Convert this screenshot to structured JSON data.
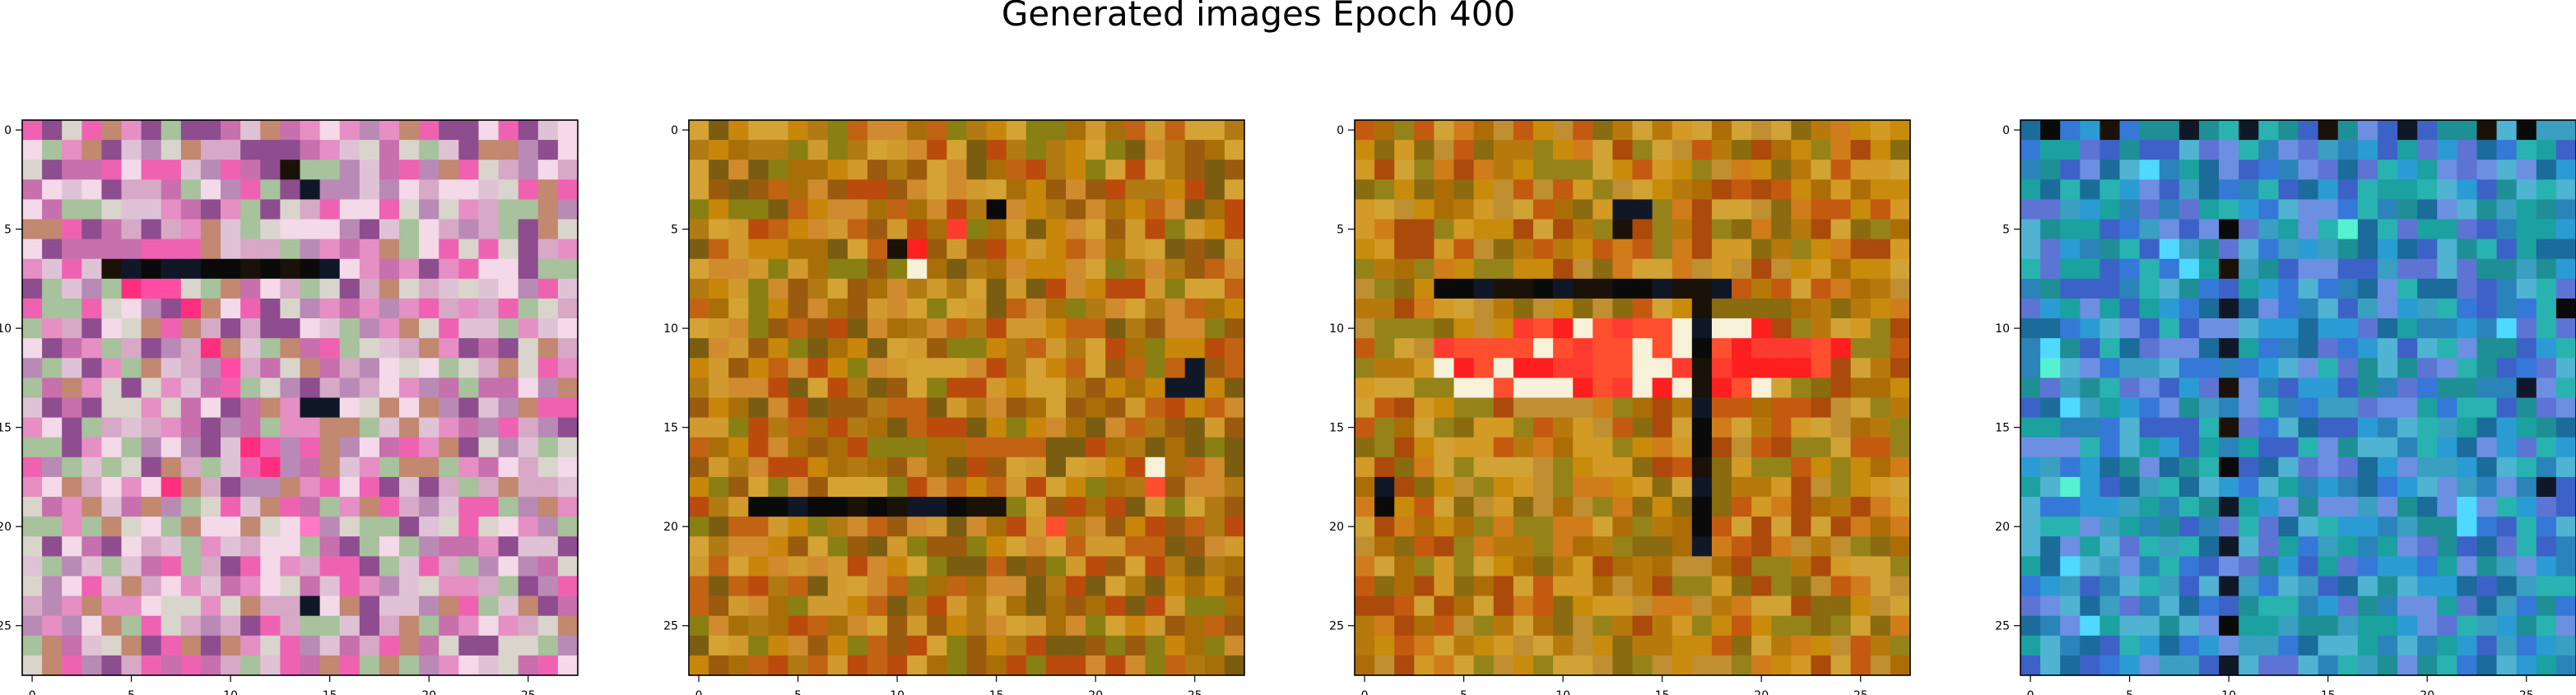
{
  "figure": {
    "suptitle": "Generated images Epoch 400"
  },
  "chart_data": {
    "type": "heatmap",
    "grid_size": [
      28,
      28
    ],
    "xlim": [
      -0.5,
      27.5
    ],
    "ylim": [
      27.5,
      -0.5
    ],
    "xticks": [
      0,
      5,
      10,
      15,
      20,
      25
    ],
    "yticks": [
      0,
      5,
      10,
      15,
      20,
      25
    ],
    "grid": false,
    "panels": [
      {
        "palette": [
          "#b98ab6",
          "#d7a9c6",
          "#e0c2d6",
          "#c770ad",
          "#e58fc4",
          "#a7c29c",
          "#d9d5cc",
          "#ef62b2",
          "#8d4d8f",
          "#f4d9e8",
          "#c28870"
        ],
        "dark_pixels": [
          [
            7,
            4
          ],
          [
            7,
            5
          ],
          [
            7,
            6
          ],
          [
            7,
            7
          ],
          [
            7,
            8
          ],
          [
            7,
            9
          ],
          [
            7,
            10
          ],
          [
            7,
            11
          ],
          [
            7,
            12
          ],
          [
            7,
            13
          ],
          [
            7,
            14
          ],
          [
            7,
            15
          ],
          [
            2,
            13
          ],
          [
            3,
            14
          ],
          [
            14,
            14
          ],
          [
            14,
            15
          ],
          [
            24,
            14
          ]
        ],
        "bright_pixels": [
          [
            8,
            5
          ],
          [
            8,
            6
          ],
          [
            8,
            7
          ],
          [
            9,
            8
          ],
          [
            11,
            9
          ],
          [
            12,
            10
          ],
          [
            16,
            11
          ],
          [
            17,
            12
          ],
          [
            18,
            7
          ],
          [
            20,
            14
          ]
        ]
      },
      {
        "palette": [
          "#c8860a",
          "#b27a12",
          "#a86f08",
          "#d19a2e",
          "#9a5b0e",
          "#c16313",
          "#8a7f13",
          "#bb4b0c",
          "#d4a334",
          "#7b5d12",
          "#cf8b2e"
        ],
        "dark_pixels": [
          [
            19,
            3
          ],
          [
            19,
            4
          ],
          [
            19,
            5
          ],
          [
            19,
            6
          ],
          [
            19,
            7
          ],
          [
            19,
            8
          ],
          [
            19,
            9
          ],
          [
            19,
            10
          ],
          [
            19,
            11
          ],
          [
            19,
            12
          ],
          [
            19,
            13
          ],
          [
            19,
            14
          ],
          [
            19,
            15
          ],
          [
            6,
            10
          ],
          [
            13,
            24
          ],
          [
            13,
            25
          ],
          [
            12,
            25
          ],
          [
            4,
            15
          ]
        ],
        "bright_pixels": [
          [
            6,
            11
          ],
          [
            7,
            11
          ],
          [
            17,
            23
          ],
          [
            18,
            23
          ],
          [
            5,
            13
          ],
          [
            20,
            18
          ]
        ]
      },
      {
        "palette": [
          "#c98b0c",
          "#b8790c",
          "#d39a25",
          "#ac6d07",
          "#c45a10",
          "#95831a",
          "#d1a335",
          "#ab4a0b",
          "#bf8f31",
          "#8a6b0f",
          "#d07c1a"
        ],
        "dark_pixels": [
          [
            8,
            4
          ],
          [
            8,
            5
          ],
          [
            8,
            6
          ],
          [
            8,
            7
          ],
          [
            8,
            8
          ],
          [
            8,
            9
          ],
          [
            8,
            10
          ],
          [
            8,
            11
          ],
          [
            8,
            12
          ],
          [
            8,
            13
          ],
          [
            8,
            14
          ],
          [
            8,
            15
          ],
          [
            8,
            16
          ],
          [
            8,
            17
          ],
          [
            8,
            18
          ],
          [
            4,
            13
          ],
          [
            4,
            14
          ],
          [
            5,
            13
          ],
          [
            9,
            17
          ],
          [
            10,
            17
          ],
          [
            11,
            17
          ],
          [
            12,
            17
          ],
          [
            13,
            17
          ],
          [
            14,
            17
          ],
          [
            15,
            17
          ],
          [
            16,
            17
          ],
          [
            17,
            17
          ],
          [
            18,
            17
          ],
          [
            19,
            17
          ],
          [
            20,
            17
          ],
          [
            21,
            17
          ],
          [
            18,
            1
          ],
          [
            19,
            1
          ]
        ],
        "bright_pixels": [
          [
            11,
            4
          ],
          [
            11,
            5
          ],
          [
            11,
            6
          ],
          [
            11,
            7
          ],
          [
            11,
            8
          ],
          [
            11,
            9
          ],
          [
            11,
            10
          ],
          [
            11,
            11
          ],
          [
            11,
            12
          ],
          [
            11,
            13
          ],
          [
            11,
            14
          ],
          [
            11,
            15
          ],
          [
            11,
            16
          ],
          [
            11,
            17
          ],
          [
            11,
            18
          ],
          [
            11,
            19
          ],
          [
            11,
            20
          ],
          [
            11,
            21
          ],
          [
            11,
            22
          ],
          [
            11,
            23
          ],
          [
            11,
            24
          ],
          [
            12,
            4
          ],
          [
            12,
            5
          ],
          [
            12,
            6
          ],
          [
            12,
            7
          ],
          [
            12,
            8
          ],
          [
            12,
            9
          ],
          [
            12,
            10
          ],
          [
            12,
            11
          ],
          [
            12,
            12
          ],
          [
            12,
            13
          ],
          [
            12,
            14
          ],
          [
            12,
            15
          ],
          [
            12,
            16
          ],
          [
            12,
            17
          ],
          [
            12,
            18
          ],
          [
            12,
            19
          ],
          [
            12,
            20
          ],
          [
            12,
            21
          ],
          [
            12,
            22
          ],
          [
            12,
            23
          ],
          [
            10,
            8
          ],
          [
            10,
            9
          ],
          [
            10,
            10
          ],
          [
            10,
            11
          ],
          [
            10,
            12
          ],
          [
            10,
            13
          ],
          [
            10,
            14
          ],
          [
            10,
            15
          ],
          [
            10,
            16
          ],
          [
            10,
            17
          ],
          [
            10,
            18
          ],
          [
            10,
            19
          ],
          [
            10,
            20
          ],
          [
            13,
            5
          ],
          [
            13,
            6
          ],
          [
            13,
            7
          ],
          [
            13,
            8
          ],
          [
            13,
            9
          ],
          [
            13,
            10
          ],
          [
            13,
            11
          ],
          [
            13,
            12
          ],
          [
            13,
            13
          ],
          [
            13,
            14
          ],
          [
            13,
            15
          ],
          [
            13,
            16
          ],
          [
            13,
            17
          ],
          [
            13,
            18
          ],
          [
            13,
            19
          ],
          [
            13,
            20
          ]
        ]
      },
      {
        "palette": [
          "#2a84b9",
          "#3578d8",
          "#1aa1a0",
          "#2b9bd4",
          "#3d62c7",
          "#1f8f96",
          "#4fb3d1",
          "#5d74d4",
          "#1b6b9b",
          "#29b3b0",
          "#3a9fc0",
          "#6c8fe1"
        ],
        "dark_pixels": [
          [
            0,
            1
          ],
          [
            0,
            4
          ],
          [
            0,
            8
          ],
          [
            0,
            11
          ],
          [
            0,
            15
          ],
          [
            0,
            19
          ],
          [
            0,
            23
          ],
          [
            0,
            25
          ],
          [
            5,
            10
          ],
          [
            7,
            10
          ],
          [
            9,
            10
          ],
          [
            11,
            10
          ],
          [
            13,
            10
          ],
          [
            15,
            10
          ],
          [
            17,
            10
          ],
          [
            19,
            10
          ],
          [
            21,
            10
          ],
          [
            23,
            10
          ],
          [
            25,
            10
          ],
          [
            27,
            10
          ],
          [
            9,
            27
          ],
          [
            13,
            25
          ],
          [
            18,
            26
          ]
        ],
        "bright_pixels": [
          [
            12,
            1
          ],
          [
            11,
            1
          ],
          [
            14,
            2
          ],
          [
            18,
            2
          ],
          [
            22,
            2
          ],
          [
            25,
            3
          ],
          [
            2,
            6
          ],
          [
            6,
            7
          ],
          [
            7,
            8
          ],
          [
            19,
            22
          ],
          [
            20,
            22
          ],
          [
            10,
            24
          ],
          [
            5,
            16
          ]
        ]
      }
    ]
  }
}
